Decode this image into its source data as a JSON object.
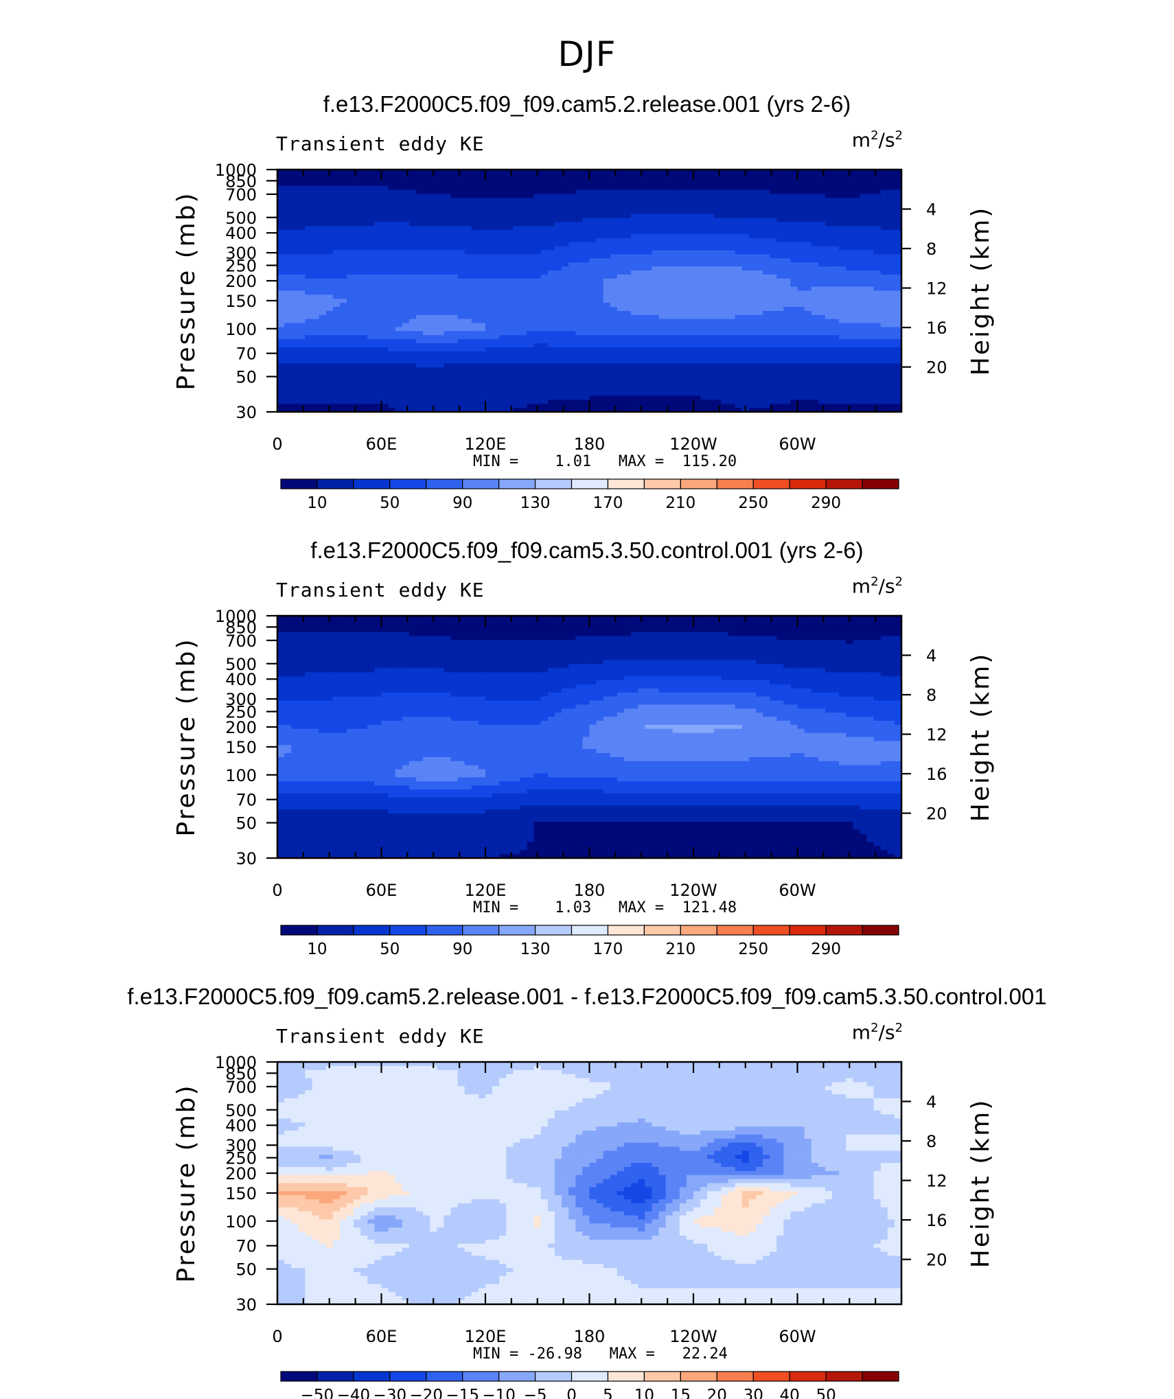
{
  "figure": {
    "main_title": "DJF",
    "x_tick_labels": [
      "0",
      "60E",
      "120E",
      "180",
      "120W",
      "60W"
    ],
    "y_tick_labels": [
      "30",
      "50",
      "70",
      "100",
      "150",
      "200",
      "250",
      "300",
      "400",
      "500",
      "700",
      "850",
      "1000"
    ],
    "y_right_tick_labels": [
      "20",
      "16",
      "12",
      "8",
      "4"
    ],
    "y_label": "Pressure (mb)",
    "y_right_label": "Height (km)"
  },
  "panels": [
    {
      "title": "f.e13.F2000C5.f09_f09.cam5.2.release.001 (yrs 2-6)",
      "variable": "Transient eddy KE",
      "unit_base": "m",
      "unit_exp1": "2",
      "unit_mid": "/s",
      "unit_exp2": "2",
      "stats": "MIN =    1.01   MAX =  115.20",
      "colorbar_labels": [
        "10",
        "50",
        "90",
        "130",
        "170",
        "210",
        "250",
        "290"
      ]
    },
    {
      "title": "f.e13.F2000C5.f09_f09.cam5.3.50.control.001 (yrs 2-6)",
      "variable": "Transient eddy KE",
      "unit_base": "m",
      "unit_exp1": "2",
      "unit_mid": "/s",
      "unit_exp2": "2",
      "stats": "MIN =    1.03   MAX =  121.48",
      "colorbar_labels": [
        "10",
        "50",
        "90",
        "130",
        "170",
        "210",
        "250",
        "290"
      ]
    },
    {
      "title": "f.e13.F2000C5.f09_f09.cam5.2.release.001 - f.e13.F2000C5.f09_f09.cam5.3.50.control.001",
      "variable": "Transient eddy KE",
      "unit_base": "m",
      "unit_exp1": "2",
      "unit_mid": "/s",
      "unit_exp2": "2",
      "stats": "MIN = -26.98   MAX =   22.24",
      "colorbar_labels": [
        "−50",
        "−40",
        "−30",
        "−20",
        "−15",
        "−10",
        "−5",
        "0",
        "5",
        "10",
        "15",
        "20",
        "30",
        "40",
        "50"
      ]
    }
  ],
  "chart_data": [
    {
      "type": "heatmap",
      "title": "f.e13.F2000C5.f09_f09.cam5.2.release.001 (yrs 2-6)",
      "subtitle": "Transient eddy KE",
      "units": "m2/s2",
      "x_axis": "longitude",
      "x_ticks": [
        "0",
        "60E",
        "120E",
        "180",
        "120W",
        "60W"
      ],
      "xlim": [
        0,
        360
      ],
      "y_axis": "pressure",
      "y_scale": "log",
      "ylim": [
        1000,
        30
      ],
      "ylabel": "Pressure (mb)",
      "ylabel_right": "Height (km)",
      "y_right_ticks": [
        20,
        16,
        12,
        8,
        4
      ],
      "min": 1.01,
      "max": 115.2,
      "colorbar_ticks": [
        10,
        50,
        90,
        130,
        170,
        210,
        250,
        290
      ],
      "contour_levels": [
        0,
        10,
        30,
        50,
        70,
        90,
        110,
        130,
        150,
        170,
        190,
        210,
        230,
        250,
        270,
        290,
        310
      ],
      "colors": [
        "#00097a",
        "#0121a8",
        "#0636cf",
        "#1448e6",
        "#3062f0",
        "#5a84f6",
        "#86a7fa",
        "#b5cbfd",
        "#dfeafe",
        "#fee6d6",
        "#fdc9a9",
        "#fba87c",
        "#f77f4f",
        "#f04e23",
        "#d92a0e",
        "#b4160a",
        "#850000"
      ],
      "lon_grid": [
        0,
        30,
        60,
        90,
        120,
        150,
        180,
        210,
        240,
        270,
        300,
        330,
        360
      ],
      "lev_grid": [
        1000,
        850,
        700,
        500,
        400,
        300,
        250,
        200,
        150,
        100,
        70,
        50,
        30
      ],
      "values": [
        [
          5,
          5,
          4,
          2,
          1,
          2,
          2,
          2,
          2,
          2,
          2,
          2,
          5
        ],
        [
          8,
          9,
          8,
          5,
          3,
          4,
          6,
          6,
          6,
          6,
          5,
          5,
          8
        ],
        [
          12,
          13,
          13,
          10,
          7,
          9,
          12,
          13,
          13,
          12,
          10,
          8,
          12
        ],
        [
          22,
          24,
          26,
          25,
          22,
          24,
          28,
          32,
          32,
          30,
          26,
          23,
          22
        ],
        [
          32,
          34,
          36,
          36,
          32,
          34,
          42,
          48,
          48,
          46,
          40,
          35,
          32
        ],
        [
          48,
          50,
          54,
          54,
          48,
          50,
          62,
          70,
          72,
          70,
          60,
          52,
          48
        ],
        [
          60,
          62,
          66,
          66,
          60,
          62,
          76,
          86,
          90,
          86,
          74,
          66,
          60
        ],
        [
          75,
          72,
          74,
          74,
          70,
          72,
          86,
          100,
          108,
          104,
          88,
          82,
          75
        ],
        [
          110,
          95,
          80,
          80,
          78,
          76,
          88,
          98,
          104,
          100,
          92,
          105,
          110
        ],
        [
          88,
          82,
          86,
          102,
          92,
          72,
          78,
          82,
          84,
          82,
          80,
          86,
          88
        ],
        [
          42,
          40,
          42,
          46,
          42,
          38,
          40,
          40,
          42,
          42,
          40,
          42,
          42
        ],
        [
          18,
          18,
          17,
          16,
          16,
          16,
          16,
          16,
          16,
          16,
          16,
          17,
          18
        ],
        [
          8,
          7,
          8,
          13,
          12,
          8,
          6,
          5,
          5,
          10,
          7,
          8,
          8
        ]
      ]
    },
    {
      "type": "heatmap",
      "title": "f.e13.F2000C5.f09_f09.cam5.3.50.control.001 (yrs 2-6)",
      "subtitle": "Transient eddy KE",
      "units": "m2/s2",
      "x_axis": "longitude",
      "x_ticks": [
        "0",
        "60E",
        "120E",
        "180",
        "120W",
        "60W"
      ],
      "xlim": [
        0,
        360
      ],
      "y_axis": "pressure",
      "y_scale": "log",
      "ylim": [
        1000,
        30
      ],
      "ylabel": "Pressure (mb)",
      "ylabel_right": "Height (km)",
      "y_right_ticks": [
        20,
        16,
        12,
        8,
        4
      ],
      "min": 1.03,
      "max": 121.48,
      "colorbar_ticks": [
        10,
        50,
        90,
        130,
        170,
        210,
        250,
        290
      ],
      "contour_levels": [
        0,
        10,
        30,
        50,
        70,
        90,
        110,
        130,
        150,
        170,
        190,
        210,
        230,
        250,
        270,
        290,
        310
      ],
      "colors": [
        "#00097a",
        "#0121a8",
        "#0636cf",
        "#1448e6",
        "#3062f0",
        "#5a84f6",
        "#86a7fa",
        "#b5cbfd",
        "#dfeafe",
        "#fee6d6",
        "#fdc9a9",
        "#fba87c",
        "#f77f4f",
        "#f04e23",
        "#d92a0e",
        "#b4160a",
        "#850000"
      ],
      "lon_grid": [
        0,
        30,
        60,
        90,
        120,
        150,
        180,
        210,
        240,
        270,
        300,
        330,
        360
      ],
      "lev_grid": [
        1000,
        850,
        700,
        500,
        400,
        300,
        250,
        200,
        150,
        100,
        70,
        50,
        30
      ],
      "values": [
        [
          5,
          5,
          4,
          2,
          1,
          2,
          2,
          2,
          2,
          2,
          2,
          2,
          5
        ],
        [
          8,
          9,
          8,
          6,
          4,
          4,
          6,
          6,
          7,
          6,
          5,
          5,
          8
        ],
        [
          12,
          13,
          14,
          12,
          9,
          9,
          12,
          14,
          14,
          13,
          10,
          9,
          12
        ],
        [
          22,
          24,
          26,
          26,
          24,
          24,
          30,
          34,
          34,
          32,
          26,
          23,
          22
        ],
        [
          32,
          34,
          36,
          36,
          34,
          34,
          46,
          54,
          52,
          50,
          40,
          35,
          32
        ],
        [
          48,
          50,
          54,
          56,
          50,
          50,
          66,
          84,
          80,
          82,
          60,
          52,
          48
        ],
        [
          60,
          60,
          66,
          68,
          62,
          62,
          80,
          96,
          100,
          94,
          76,
          66,
          60
        ],
        [
          72,
          66,
          72,
          76,
          72,
          72,
          90,
          110,
          114,
          110,
          90,
          82,
          72
        ],
        [
          95,
          80,
          78,
          82,
          80,
          76,
          92,
          102,
          100,
          100,
          94,
          102,
          95
        ],
        [
          85,
          80,
          86,
          105,
          92,
          70,
          74,
          80,
          80,
          78,
          78,
          84,
          85
        ],
        [
          40,
          38,
          42,
          48,
          44,
          36,
          38,
          36,
          36,
          38,
          38,
          40,
          40
        ],
        [
          18,
          17,
          18,
          18,
          18,
          10,
          8,
          8,
          8,
          9,
          9,
          10,
          18
        ],
        [
          10,
          10,
          10,
          10,
          10,
          9,
          5,
          5,
          5,
          5,
          5,
          5,
          10
        ]
      ]
    },
    {
      "type": "heatmap",
      "title": "f.e13.F2000C5.f09_f09.cam5.2.release.001 - f.e13.F2000C5.f09_f09.cam5.3.50.control.001",
      "subtitle": "Transient eddy KE",
      "units": "m2/s2",
      "x_axis": "longitude",
      "x_ticks": [
        "0",
        "60E",
        "120E",
        "180",
        "120W",
        "60W"
      ],
      "xlim": [
        0,
        360
      ],
      "y_axis": "pressure",
      "y_scale": "log",
      "ylim": [
        1000,
        30
      ],
      "ylabel": "Pressure (mb)",
      "ylabel_right": "Height (km)",
      "y_right_ticks": [
        20,
        16,
        12,
        8,
        4
      ],
      "min": -26.98,
      "max": 22.24,
      "colorbar_ticks": [
        -50,
        -40,
        -30,
        -20,
        -15,
        -10,
        -5,
        0,
        5,
        10,
        15,
        20,
        30,
        40,
        50
      ],
      "contour_levels": [
        -60,
        -50,
        -40,
        -30,
        -20,
        -15,
        -10,
        -5,
        0,
        5,
        10,
        15,
        20,
        30,
        40,
        50,
        60
      ],
      "colors": [
        "#00097a",
        "#0121a8",
        "#0636cf",
        "#1448e6",
        "#3062f0",
        "#5a84f6",
        "#86a7fa",
        "#b5cbfd",
        "#dfeafe",
        "#fee6d6",
        "#fdc9a9",
        "#fba87c",
        "#f77f4f",
        "#f04e23",
        "#d92a0e",
        "#b4160a",
        "#850000"
      ],
      "lon_grid": [
        0,
        30,
        60,
        90,
        120,
        150,
        180,
        210,
        240,
        270,
        300,
        330,
        360
      ],
      "lev_grid": [
        1000,
        850,
        700,
        500,
        400,
        300,
        250,
        200,
        150,
        100,
        70,
        50,
        30
      ],
      "values": [
        [
          -1,
          -1,
          -1,
          -1,
          -1,
          -1,
          -1,
          -1,
          -1,
          -1,
          -1,
          -1,
          -1
        ],
        [
          -1,
          1,
          1,
          1,
          -1,
          1,
          -1,
          -1,
          -1,
          -1,
          -1,
          -1,
          -1
        ],
        [
          -2,
          1,
          1,
          1,
          -1,
          4,
          1,
          -1,
          -2,
          -2,
          -1,
          1,
          -1
        ],
        [
          1,
          1,
          2,
          1,
          1,
          1,
          -1,
          -3,
          -4,
          -3,
          -2,
          -1,
          1
        ],
        [
          -1,
          1,
          1,
          1,
          1,
          1,
          -4,
          -6,
          -2,
          -3,
          -5,
          -1,
          -1
        ],
        [
          1,
          2,
          4,
          1,
          1,
          -1,
          -8,
          -11,
          -8,
          -18,
          -7,
          1,
          1
        ],
        [
          -4,
          -6,
          3,
          1,
          1,
          -2,
          -9,
          -14,
          -12,
          -22,
          -6,
          -1,
          -1
        ],
        [
          4,
          2,
          6,
          1,
          1,
          -2,
          -12,
          -18,
          -10,
          -14,
          -8,
          -4,
          4
        ],
        [
          15,
          18,
          8,
          2,
          1,
          1,
          -16,
          -24,
          -6,
          12,
          5,
          -2,
          3
        ],
        [
          3,
          10,
          -10,
          1,
          -5,
          6,
          -10,
          -14,
          6,
          8,
          -3,
          -5,
          1
        ],
        [
          1,
          5,
          1,
          -1,
          1,
          1,
          -3,
          -3,
          -1,
          3,
          -2,
          -1,
          1
        ],
        [
          -1,
          1,
          -1,
          -1,
          -1,
          1,
          1,
          -1,
          -1,
          -1,
          -1,
          -1,
          -1
        ],
        [
          -1,
          1,
          1,
          -1,
          1,
          1,
          1,
          1,
          1,
          1,
          1,
          1,
          1
        ]
      ]
    }
  ]
}
